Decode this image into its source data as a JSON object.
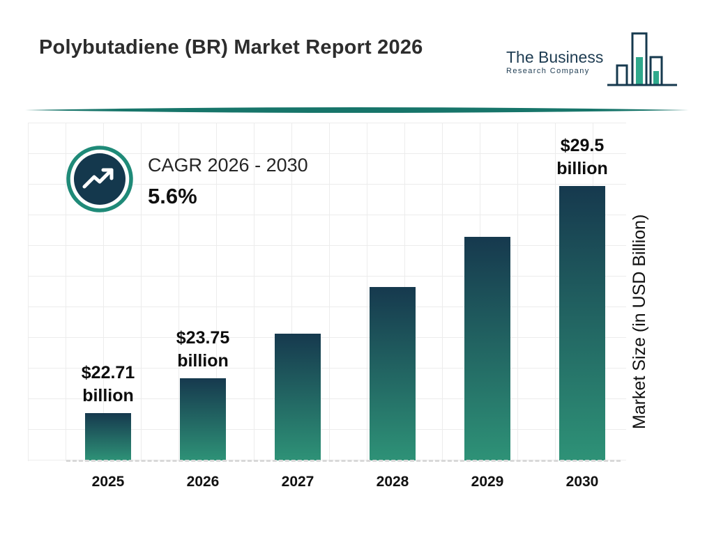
{
  "header": {
    "title": "Polybutadiene (BR) Market Report 2026",
    "logo": {
      "line1": "The Business",
      "line2": "Research Company"
    }
  },
  "cagr": {
    "label": "CAGR 2026 - 2030",
    "value": "5.6%"
  },
  "chart_data": {
    "type": "bar",
    "title": "Polybutadiene (BR) Market Report 2026",
    "categories": [
      "2025",
      "2026",
      "2027",
      "2028",
      "2029",
      "2030"
    ],
    "values": [
      22.71,
      23.75,
      25.08,
      26.48,
      27.97,
      29.5
    ],
    "bar_labels": [
      {
        "top": "$22.71",
        "bottom": "billion"
      },
      {
        "top": "$23.75",
        "bottom": "billion"
      },
      null,
      null,
      null,
      {
        "top": "$29.5",
        "bottom": "billion"
      }
    ],
    "xlabel": "",
    "ylabel": "Market Size (in USD Billion)",
    "unit": "USD Billion",
    "ylim": [
      21.3,
      31.3
    ],
    "grid": true,
    "legend": false,
    "colors": {
      "bar_gradient_top": "#16394e",
      "bar_gradient_bottom": "#2e9277",
      "accent_teal": "#17756a",
      "ring_teal": "#1f8a78",
      "navy": "#16394e"
    }
  }
}
